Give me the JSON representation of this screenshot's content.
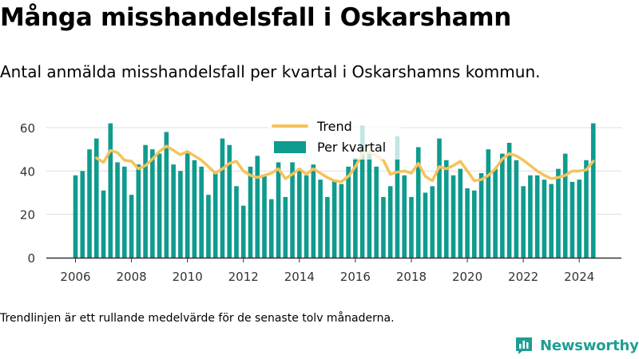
{
  "header": {
    "title": "Många misshandelsfall i Oskarshamn",
    "subtitle": "Antal anmälda misshandelsfall per kvartal i Oskarshamns kommun."
  },
  "footer": {
    "note": "Trendlinjen är ett rullande medelvärde för de senaste tolv månaderna.",
    "brand": "Newsworthy"
  },
  "colors": {
    "bars": "#0f9b8e",
    "trend": "#f6c25b",
    "grid": "#dddddd",
    "axis": "#333333",
    "brand": "#1f9e92"
  },
  "chart_data": {
    "type": "bar",
    "title": "",
    "xlabel": "",
    "ylabel": "",
    "ylim": [
      0,
      62
    ],
    "yticks": [
      0,
      20,
      40,
      60
    ],
    "xticks": [
      "2006",
      "2008",
      "2010",
      "2012",
      "2014",
      "2016",
      "2018",
      "2020",
      "2022",
      "2024"
    ],
    "grid": true,
    "legend": {
      "position": "top-center",
      "entries": [
        "Trend",
        "Per kvartal"
      ]
    },
    "x_start": "2006 Q1",
    "series": [
      {
        "name": "Per kvartal",
        "type": "bar",
        "values": [
          38,
          40,
          50,
          55,
          31,
          62,
          44,
          42,
          29,
          43,
          52,
          50,
          48,
          58,
          43,
          40,
          49,
          45,
          42,
          29,
          40,
          55,
          52,
          33,
          24,
          42,
          47,
          38,
          27,
          44,
          28,
          44,
          41,
          38,
          43,
          36,
          28,
          36,
          34,
          42,
          46,
          61,
          48,
          42,
          28,
          33,
          56,
          38,
          28,
          51,
          30,
          33,
          55,
          45,
          38,
          41,
          32,
          31,
          39,
          50,
          41,
          48,
          53,
          45,
          33,
          38,
          38,
          36,
          34,
          41,
          48,
          35,
          36,
          45,
          62
        ]
      },
      {
        "name": "Trend",
        "type": "line",
        "values": [
          null,
          null,
          null,
          46,
          44,
          49.5,
          48.5,
          45,
          44.5,
          41,
          42.5,
          45.5,
          49,
          51.5,
          49.5,
          47.5,
          49,
          47,
          45,
          42,
          39,
          41,
          43.5,
          44.5,
          40,
          38,
          37,
          38,
          39,
          41,
          36.5,
          38.5,
          41,
          38.5,
          41,
          39,
          37,
          35.5,
          35,
          37.5,
          42,
          48,
          49,
          47,
          45,
          38.5,
          39.5,
          40,
          39,
          43.5,
          37.5,
          35.5,
          42,
          41,
          42.5,
          44.5,
          40,
          35.5,
          36,
          38,
          41,
          45.5,
          48,
          47,
          45,
          42.5,
          40,
          38,
          36.5,
          37,
          38,
          40,
          40,
          40.5,
          44.5
        ]
      }
    ]
  }
}
